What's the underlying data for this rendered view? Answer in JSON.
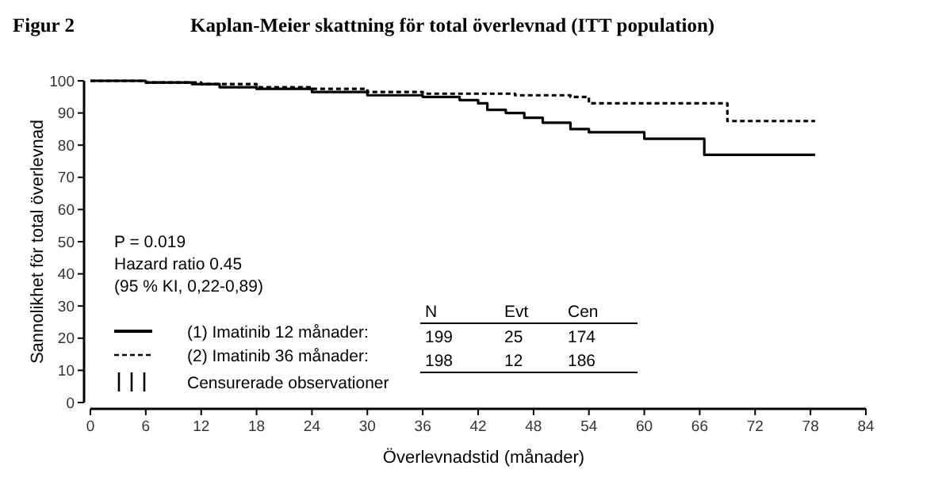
{
  "chart_data": {
    "type": "step",
    "title": "Kaplan-Meier skattning för total överlevnad (ITT population)",
    "xlabel": "Överlevnadstid (månader)",
    "ylabel": "Sannolikhet för total överlevnad",
    "annotations": [
      "Figur 2",
      "P = 0.019",
      "Hazard ratio 0.45",
      "(95 % KI, 0,22-0,89)",
      "Censurerade observationer",
      "N",
      "Evt",
      "Cen",
      "199",
      "25",
      "174",
      "198",
      "12",
      "186"
    ],
    "series": [
      {
        "name": "(1) Imatinib 12 månader:",
        "color": "#000000",
        "line_style": "solid",
        "x": [
          0,
          6,
          11,
          14,
          18,
          24,
          30,
          36,
          40,
          42,
          43,
          45,
          47,
          49,
          52,
          54,
          60,
          65.5,
          66.5,
          78.5
        ],
        "values": [
          100,
          99.5,
          99,
          98,
          97.5,
          96.5,
          95.5,
          95,
          94,
          93,
          91,
          90,
          88.5,
          87,
          85,
          84,
          82,
          82,
          77,
          77
        ]
      },
      {
        "name": "(2) Imatinib 36 månader:",
        "color": "#000000",
        "line_style": "dashed",
        "x": [
          0,
          6,
          12,
          18,
          24,
          30,
          36,
          42,
          46,
          52,
          54,
          66,
          69,
          78.5
        ],
        "values": [
          100,
          99.5,
          99,
          98,
          97.5,
          96.5,
          96,
          96,
          95.5,
          95,
          93,
          93,
          87.5,
          87.5
        ]
      }
    ],
    "xlim": [
      0,
      84
    ],
    "xticks": [
      0,
      6,
      12,
      18,
      24,
      30,
      36,
      42,
      48,
      54,
      60,
      66,
      72,
      78,
      84
    ],
    "ylim": [
      0,
      100
    ],
    "yticks": [
      0,
      10,
      20,
      30,
      40,
      50,
      60,
      70,
      80,
      90,
      100
    ],
    "grid": false,
    "legend": "bottom left",
    "marker": "none"
  }
}
